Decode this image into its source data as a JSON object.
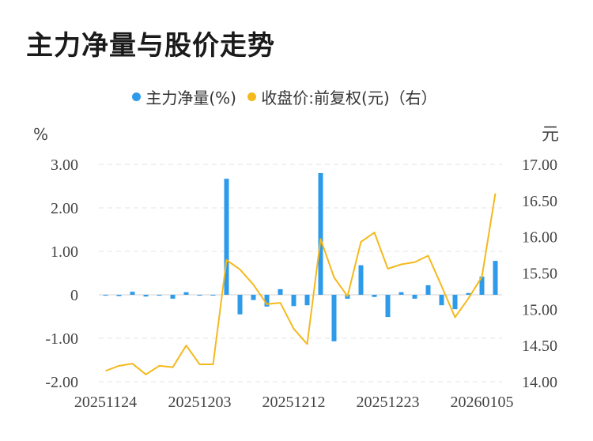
{
  "page": {
    "title": "主力净量与股价走势"
  },
  "legend": {
    "items": [
      {
        "label": "主力净量(%)",
        "color": "#2d9bea"
      },
      {
        "label": "收盘价:前复权(元)（右）",
        "color": "#f4b91d"
      }
    ]
  },
  "chart_data": {
    "type": "bar+line",
    "title": "主力净量与股价走势",
    "left_axis": {
      "unit": "%",
      "ticks": [
        "3.00",
        "2.00",
        "1.00",
        "0",
        "-1.00",
        "-2.00"
      ],
      "range": [
        -2,
        3
      ]
    },
    "right_axis": {
      "unit": "元",
      "ticks": [
        "17.00",
        "16.50",
        "16.00",
        "15.50",
        "15.00",
        "14.50",
        "14.00"
      ],
      "range": [
        14,
        17
      ]
    },
    "x_tick_labels": [
      {
        "index": 0,
        "label": "20251124"
      },
      {
        "index": 7,
        "label": "20251203"
      },
      {
        "index": 14,
        "label": "20251212"
      },
      {
        "index": 21,
        "label": "20251223"
      },
      {
        "index": 28,
        "label": "20260105"
      }
    ],
    "series": [
      {
        "name": "主力净量(%)",
        "kind": "bar",
        "axis": "left",
        "color": "#2d9bea",
        "values": [
          -0.02,
          -0.03,
          0.07,
          -0.04,
          -0.02,
          -0.09,
          0.06,
          -0.02,
          -0.01,
          2.67,
          -0.45,
          -0.12,
          -0.27,
          0.13,
          -0.26,
          -0.24,
          2.8,
          -1.07,
          -0.09,
          0.68,
          -0.05,
          -0.51,
          0.06,
          -0.09,
          0.22,
          -0.24,
          -0.33,
          0.04,
          0.42,
          0.78
        ]
      },
      {
        "name": "收盘价:前复权(元)（右）",
        "kind": "line",
        "axis": "right",
        "color": "#f4b91d",
        "values": [
          14.15,
          14.22,
          14.25,
          14.1,
          14.22,
          14.2,
          14.5,
          14.24,
          14.24,
          15.68,
          15.55,
          15.34,
          15.07,
          15.09,
          14.73,
          14.52,
          15.97,
          15.44,
          15.18,
          15.93,
          16.06,
          15.56,
          15.62,
          15.65,
          15.74,
          15.32,
          14.89,
          15.15,
          15.45,
          16.6
        ]
      }
    ]
  }
}
